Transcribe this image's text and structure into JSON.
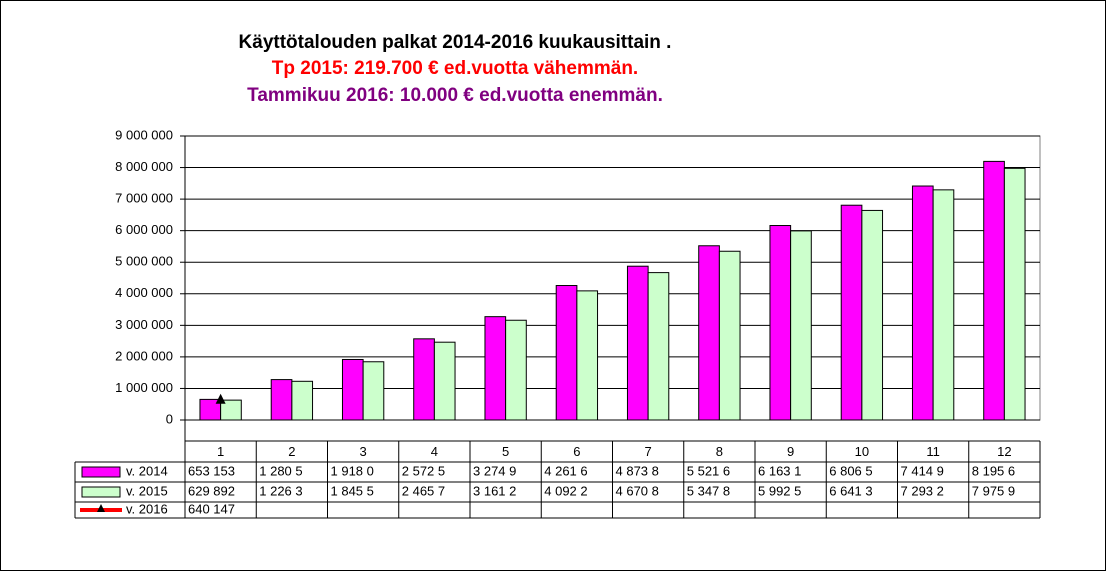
{
  "chart_data": {
    "type": "bar",
    "title": "Käyttötalouden palkat 2014-2016 kuukausittain .",
    "subtitle": "Tp  2015: 219.700 € ed.vuotta vähemmän.",
    "subtitle2": "Tammikuu 2016: 10.000 € ed.vuotta enemmän.",
    "categories": [
      "1",
      "2",
      "3",
      "4",
      "5",
      "6",
      "7",
      "8",
      "9",
      "10",
      "11",
      "12"
    ],
    "series": [
      {
        "name": "v. 2014",
        "color": "#ff00ff",
        "type": "bar",
        "values": [
          653153,
          1280500,
          1918000,
          2572500,
          3274900,
          4261600,
          4873800,
          5521600,
          6163100,
          6806500,
          7414900,
          8195600
        ],
        "value_labels": [
          "653 153",
          "1 280 5",
          "1 918 0",
          "2 572 5",
          "3 274 9",
          "4 261 6",
          "4 873 8",
          "5 521 6",
          "6 163 1",
          "6 806 5",
          "7 414 9",
          "8 195 6"
        ]
      },
      {
        "name": "v. 2015",
        "color": "#ccffcc",
        "type": "bar",
        "values": [
          629892,
          1226300,
          1845500,
          2465700,
          3161200,
          4092200,
          4670800,
          5347800,
          5992500,
          6641300,
          7293200,
          7975900
        ],
        "value_labels": [
          "629 892",
          "1 226 3",
          "1 845 5",
          "2 465 7",
          "3 161 2",
          "4 092 2",
          "4 670 8",
          "5 347 8",
          "5 992 5",
          "6 641 3",
          "7 293 2",
          "7 975 9"
        ]
      },
      {
        "name": "v. 2016",
        "color": "#ff0000",
        "type": "line",
        "values": [
          640147,
          null,
          null,
          null,
          null,
          null,
          null,
          null,
          null,
          null,
          null,
          null
        ],
        "value_labels": [
          "640 147",
          null,
          null,
          null,
          null,
          null,
          null,
          null,
          null,
          null,
          null,
          null
        ]
      }
    ],
    "ylim": [
      0,
      9000000
    ],
    "yticks": [
      0,
      {
        "value": 1000000,
        "label": "1 000 000"
      },
      {
        "value": 2000000,
        "label": "2 000 000"
      },
      {
        "value": 3000000,
        "label": "3 000 000"
      },
      {
        "value": 4000000,
        "label": "4 000 000"
      },
      {
        "value": 5000000,
        "label": "5 000 000"
      },
      {
        "value": 6000000,
        "label": "6 000 000"
      },
      {
        "value": 7000000,
        "label": "7 000 000"
      },
      {
        "value": 8000000,
        "label": "8 000 000"
      },
      {
        "value": 9000000,
        "label": "9 000 000"
      }
    ],
    "grid": true
  }
}
